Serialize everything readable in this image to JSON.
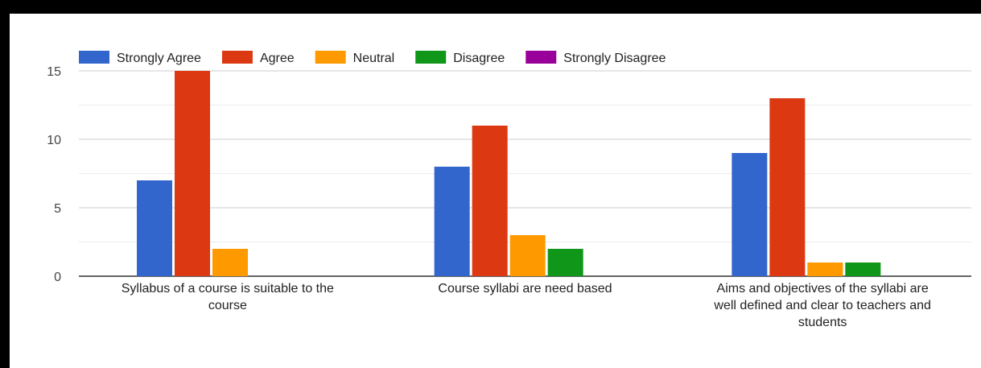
{
  "chart_data": {
    "type": "bar",
    "categories": [
      [
        "Syllabus of a course is suitable to the",
        "course"
      ],
      [
        "Course syllabi are need based"
      ],
      [
        "Aims and objectives of the syllabi are",
        "well defined and clear to teachers and",
        "students"
      ]
    ],
    "series": [
      {
        "name": "Strongly Agree",
        "color": "#3366cc",
        "values": [
          7,
          8,
          9
        ]
      },
      {
        "name": "Agree",
        "color": "#dc3912",
        "values": [
          15,
          11,
          13
        ]
      },
      {
        "name": "Neutral",
        "color": "#ff9900",
        "values": [
          2,
          3,
          1
        ]
      },
      {
        "name": "Disagree",
        "color": "#109618",
        "values": [
          0,
          2,
          1
        ]
      },
      {
        "name": "Strongly Disagree",
        "color": "#990099",
        "values": [
          0,
          0,
          0
        ]
      }
    ],
    "ylim": [
      0,
      15
    ],
    "yticks": [
      0,
      5,
      10,
      15
    ],
    "grid": true,
    "legend_position": "top"
  }
}
